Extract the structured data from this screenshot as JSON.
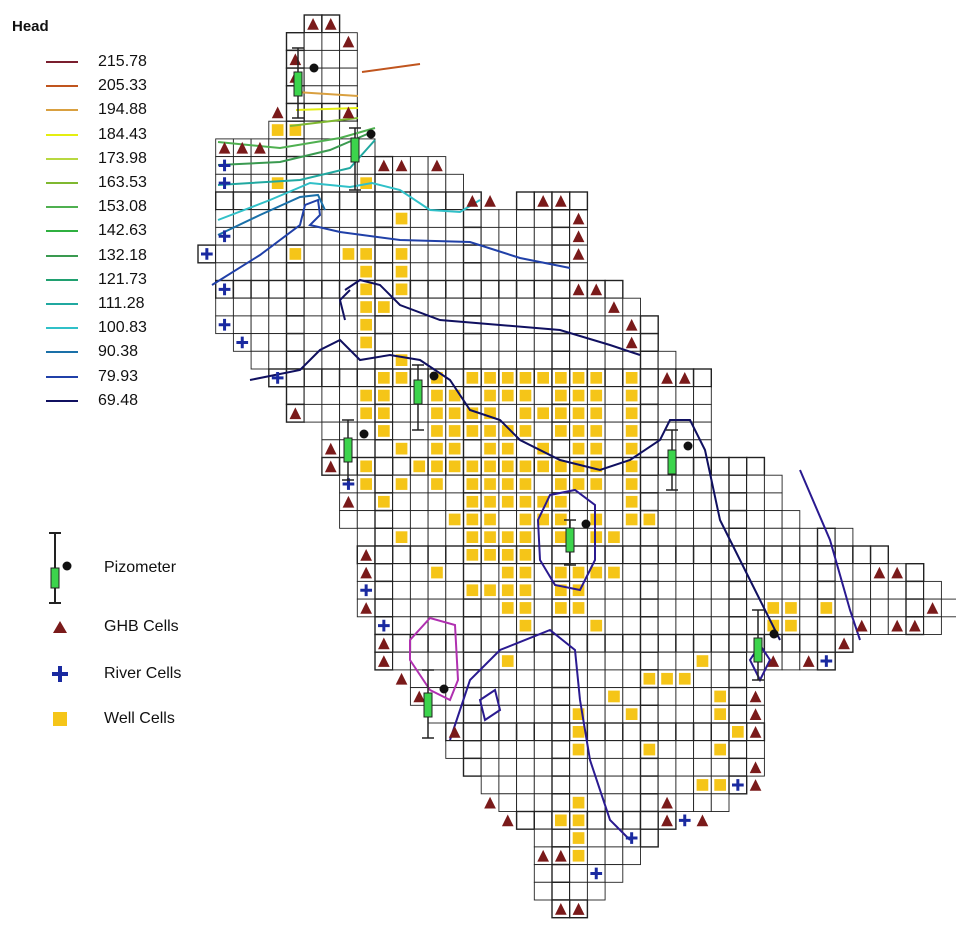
{
  "legend": {
    "title": "Head",
    "contours": [
      {
        "value": "215.78",
        "color": "#7a1e2e"
      },
      {
        "value": "205.33",
        "color": "#c0551e"
      },
      {
        "value": "194.88",
        "color": "#d9a040"
      },
      {
        "value": "184.43",
        "color": "#e4ee10"
      },
      {
        "value": "173.98",
        "color": "#b8d840"
      },
      {
        "value": "163.53",
        "color": "#7fb830"
      },
      {
        "value": "153.08",
        "color": "#4fb050"
      },
      {
        "value": "142.63",
        "color": "#2fb040"
      },
      {
        "value": "132.18",
        "color": "#3a9a50"
      },
      {
        "value": "121.73",
        "color": "#20a070"
      },
      {
        "value": "111.28",
        "color": "#20a8a0"
      },
      {
        "value": "100.83",
        "color": "#30c0c8"
      },
      {
        "value": "90.38",
        "color": "#1a70a8"
      },
      {
        "value": "79.93",
        "color": "#2040a8"
      },
      {
        "value": "69.48",
        "color": "#101060"
      }
    ],
    "symbols": [
      {
        "label": "Pizometer",
        "icon": "piezometer-icon"
      },
      {
        "label": "GHB Cells",
        "icon": "triangle-icon",
        "color": "#7a1a1a"
      },
      {
        "label": "River Cells",
        "icon": "plus-icon",
        "color": "#1a2aa0"
      },
      {
        "label": "Well Cells",
        "icon": "square-icon",
        "color": "#f5c518"
      }
    ]
  }
}
